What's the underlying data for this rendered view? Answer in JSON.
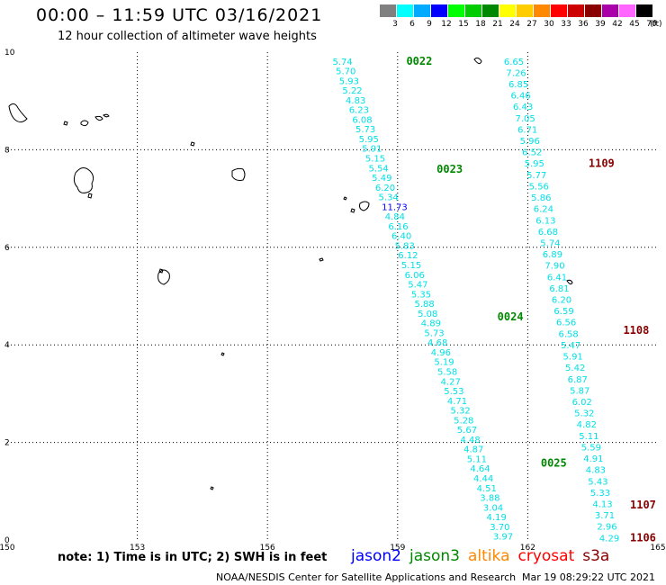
{
  "header": {
    "title": "00:00 – 11:59 UTC 03/16/2021",
    "subtitle": "12 hour collection of altimeter wave heights"
  },
  "scale": {
    "unit": "(ft)",
    "bins": [
      {
        "label": "3",
        "color": "#808080"
      },
      {
        "label": "6",
        "color": "#00ffff"
      },
      {
        "label": "9",
        "color": "#00aaff"
      },
      {
        "label": "12",
        "color": "#0000ff"
      },
      {
        "label": "15",
        "color": "#00ff00"
      },
      {
        "label": "18",
        "color": "#00cc00"
      },
      {
        "label": "21",
        "color": "#008800"
      },
      {
        "label": "24",
        "color": "#ffff00"
      },
      {
        "label": "27",
        "color": "#ffcc00"
      },
      {
        "label": "30",
        "color": "#ff8800"
      },
      {
        "label": "33",
        "color": "#ff0000"
      },
      {
        "label": "36",
        "color": "#cc0000"
      },
      {
        "label": "39",
        "color": "#880000"
      },
      {
        "label": "42",
        "color": "#aa00aa"
      },
      {
        "label": "45",
        "color": "#ff66ff"
      },
      {
        "label": "70",
        "color": "#000000"
      }
    ]
  },
  "axes": {
    "x_ticks": [
      150,
      153,
      156,
      159,
      162,
      165
    ],
    "y_ticks": [
      0,
      2,
      4,
      6,
      8,
      10
    ],
    "xlim": [
      150,
      165
    ],
    "ylim": [
      0,
      10
    ]
  },
  "colors": {
    "cyan": "#00e0e6",
    "blue": "#0000ff",
    "jason3": "#008800",
    "cryosat": "#880000"
  },
  "passes": [
    {
      "id": "0022",
      "satellite": "jason3",
      "lon": 159.2,
      "lat": 9.82
    },
    {
      "id": "0023",
      "satellite": "jason3",
      "lon": 159.9,
      "lat": 7.6
    },
    {
      "id": "0024",
      "satellite": "jason3",
      "lon": 161.3,
      "lat": 4.58
    },
    {
      "id": "0025",
      "satellite": "jason3",
      "lon": 162.3,
      "lat": 1.58
    },
    {
      "id": "1109",
      "satellite": "cryosat",
      "lon": 163.4,
      "lat": 7.72
    },
    {
      "id": "1108",
      "satellite": "cryosat",
      "lon": 164.2,
      "lat": 4.3
    },
    {
      "id": "1107",
      "satellite": "cryosat",
      "lon": 164.9,
      "lat": 0.72
    },
    {
      "id": "1106",
      "satellite": "cryosat",
      "lon": 165.1,
      "lat": 0.05
    }
  ],
  "tracks": [
    {
      "name": "jason3-track",
      "start": {
        "lon": 157.5,
        "lat": 9.82
      },
      "end": {
        "lon": 161.2,
        "lat": 0.08
      },
      "values": [
        "5.74",
        "5.70",
        "5.93",
        "5.22",
        "4.83",
        "6.23",
        "6.08",
        "5.73",
        "5.95",
        "5.91",
        "5.15",
        "5.54",
        "5.49",
        "6.20",
        "5.34",
        "11.73",
        "4.84",
        "6.16",
        "6.40",
        "5.83",
        "6.12",
        "5.15",
        "6.06",
        "5.47",
        "5.35",
        "5.88",
        "5.08",
        "4.89",
        "5.73",
        "4.68",
        "4.96",
        "5.19",
        "5.58",
        "4.27",
        "5.53",
        "4.71",
        "5.32",
        "5.28",
        "5.67",
        "4.48",
        "4.87",
        "5.11",
        "4.64",
        "4.44",
        "4.51",
        "3.88",
        "3.04",
        "4.19",
        "3.70",
        "3.97"
      ],
      "highlight_index": 15
    },
    {
      "name": "cryosat-track",
      "start": {
        "lon": 161.45,
        "lat": 9.82
      },
      "end": {
        "lon": 163.65,
        "lat": 0.05
      },
      "values": [
        "6.65",
        "7.26",
        "6.85",
        "6.46",
        "6.43",
        "7.05",
        "6.71",
        "5.96",
        "6.52",
        "5.95",
        "5.77",
        "5.56",
        "5.86",
        "6.24",
        "6.13",
        "6.68",
        "5.74",
        "6.89",
        "7.90",
        "6.41",
        "6.81",
        "6.20",
        "6.59",
        "6.56",
        "6.58",
        "5.47",
        "5.91",
        "5.42",
        "6.87",
        "5.87",
        "6.02",
        "5.32",
        "4.82",
        "5.11",
        "5.59",
        "4.91",
        "4.83",
        "5.43",
        "5.33",
        "4.13",
        "3.71",
        "2.96",
        "4.29"
      ],
      "highlight_index": -1
    }
  ],
  "footer": {
    "note": "note: 1) Time is in UTC; 2) SWH is in feet",
    "legend": [
      {
        "label": "jason2",
        "color": "#0000ff"
      },
      {
        "label": "jason3",
        "color": "#008800"
      },
      {
        "label": "altika",
        "color": "#ff8800"
      },
      {
        "label": "cryosat",
        "color": "#ff0000"
      },
      {
        "label": "s3a",
        "color": "#880000"
      }
    ],
    "credit": "NOAA/NESDIS Center for Satellite Applications and Research",
    "date": "Mar 19 08:29:22 UTC 2021"
  }
}
